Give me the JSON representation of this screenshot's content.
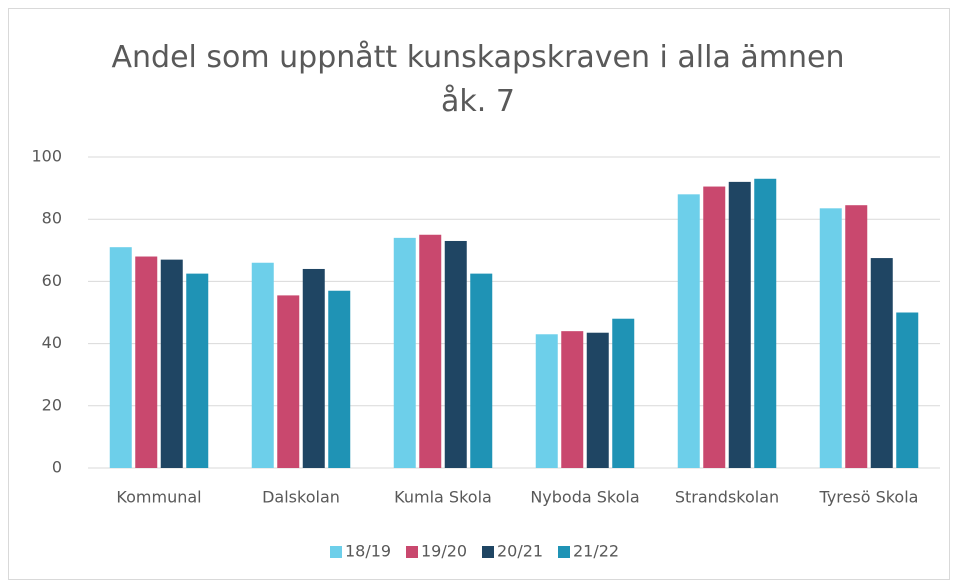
{
  "chart_data": {
    "type": "bar",
    "title": "Andel som uppnått kunskapskraven i alla ämnen åk. 7",
    "categories": [
      "Kommunal",
      "Dalskolan",
      "Kumla Skola",
      "Nyboda Skola",
      "Strandskolan",
      "Tyresö Skola"
    ],
    "series": [
      {
        "name": "18/19",
        "color": "#6dcfea",
        "values": [
          71,
          66,
          74,
          43,
          88,
          83.5
        ]
      },
      {
        "name": "19/20",
        "color": "#c9486e",
        "values": [
          68,
          55.5,
          75,
          44,
          90.5,
          84.5
        ]
      },
      {
        "name": "20/21",
        "color": "#1f4563",
        "values": [
          67,
          64,
          73,
          43.5,
          92,
          67.5
        ]
      },
      {
        "name": "21/22",
        "color": "#1f93b5",
        "values": [
          62.5,
          57,
          62.5,
          48,
          93,
          50
        ]
      }
    ],
    "ylim": [
      0,
      100
    ],
    "yticks": [
      0,
      20,
      40,
      60,
      80,
      100
    ],
    "grid": true,
    "legend": "bottom"
  }
}
